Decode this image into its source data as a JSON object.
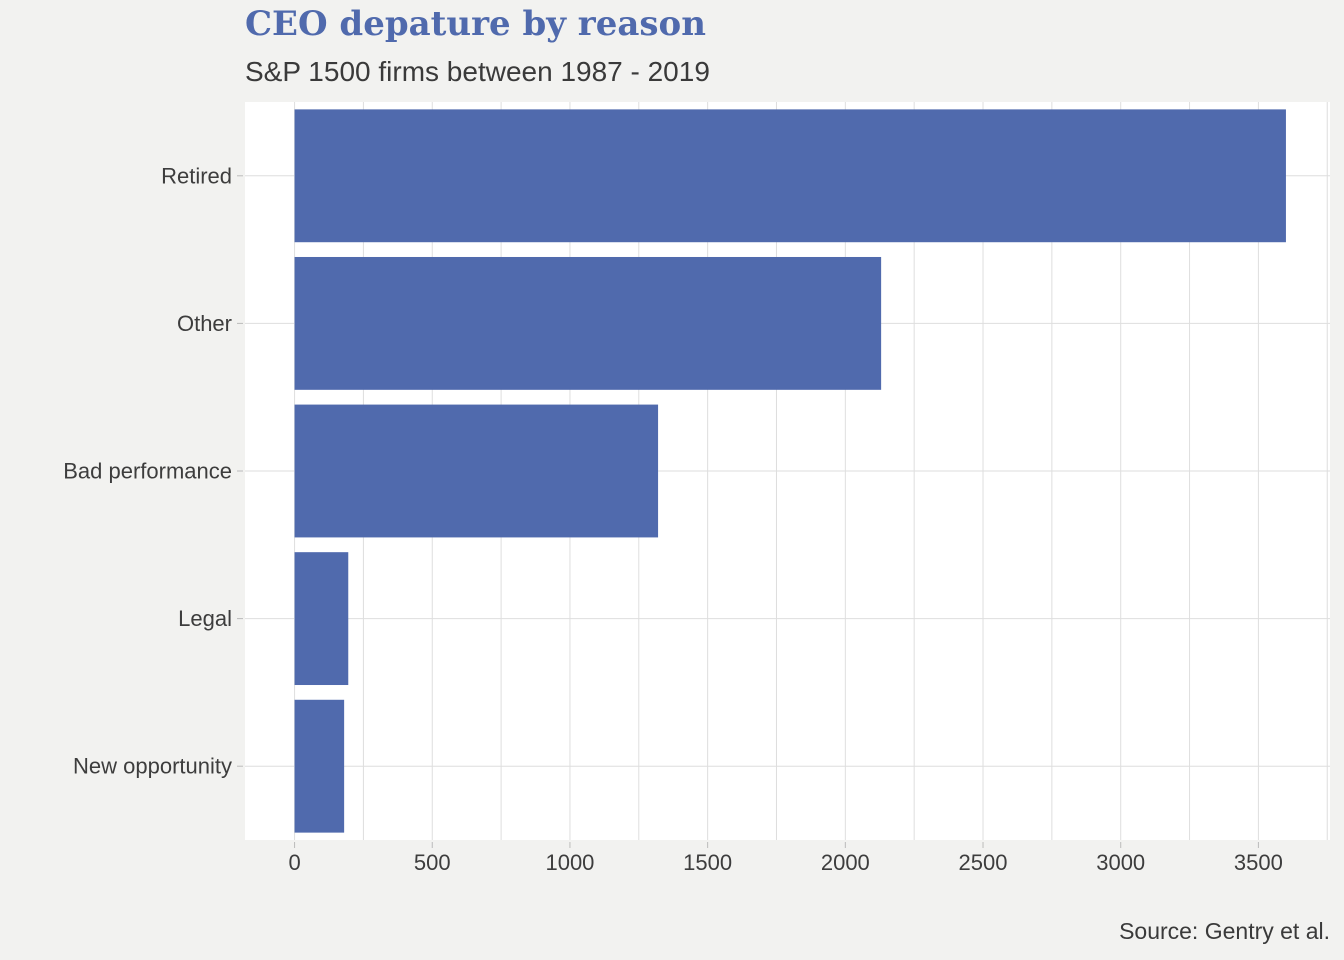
{
  "chart_data": {
    "type": "bar",
    "orientation": "horizontal",
    "title": "CEO depature by reason",
    "subtitle": "S&P 1500 firms between 1987 - 2019",
    "source": "Source: Gentry et al.",
    "categories": [
      "Retired",
      "Other",
      "Bad performance",
      "Legal",
      "New opportunity"
    ],
    "values": [
      3600,
      2130,
      1320,
      195,
      180
    ],
    "xlim": [
      -180,
      3760
    ],
    "xticks": [
      0,
      500,
      1000,
      1500,
      2000,
      2500,
      3000,
      3500
    ],
    "xtick_labels": [
      "0",
      "500",
      "1000",
      "1500",
      "2000",
      "2500",
      "3000",
      "3500"
    ],
    "grid": true,
    "legend": "none",
    "colors": {
      "bar": "#506aad",
      "panel": "#ffffff",
      "background": "#f2f2f0",
      "grid": "#dedede",
      "title": "#506aad"
    }
  }
}
